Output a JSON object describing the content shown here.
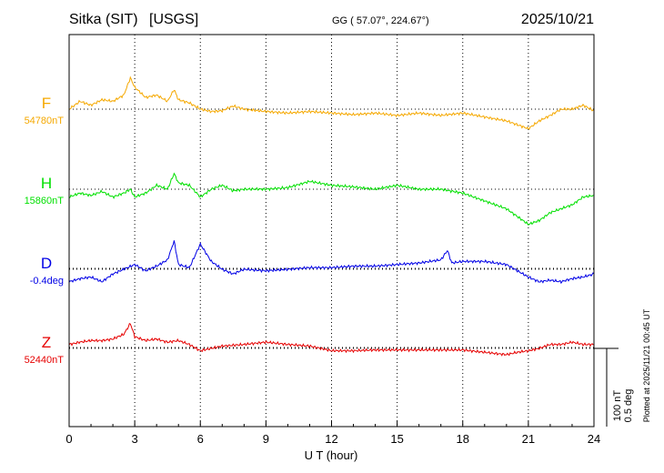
{
  "header": {
    "station": "Sitka (SIT)",
    "network": "[USGS]",
    "coords": "GG ( 57.07°, 224.67°)",
    "date": "2025/10/21"
  },
  "plotted_note": "Plotted at 2025/11/21 00:45 UT",
  "scale_bar": {
    "line1": "100 nT",
    "line2": "0.5 deg"
  },
  "chart_data": {
    "type": "line",
    "title": "Sitka (SIT)  [USGS]",
    "xlabel": "U T (hour)",
    "xlim": [
      0,
      24
    ],
    "xticks": [
      0,
      3,
      6,
      9,
      12,
      15,
      18,
      21,
      24
    ],
    "grid": true,
    "series": [
      {
        "name": "F",
        "baseline_label": "54780nT",
        "color": "#f5a800",
        "x": [
          0,
          0.5,
          1,
          1.5,
          2,
          2.5,
          2.8,
          3,
          3.5,
          4,
          4.5,
          4.8,
          5,
          5.5,
          6,
          6.5,
          7,
          7.5,
          8,
          9,
          10,
          11,
          12,
          13,
          14,
          15,
          16,
          17,
          18,
          19,
          20,
          20.5,
          21,
          21.5,
          22,
          22.5,
          23,
          23.5,
          24
        ],
        "y": [
          0,
          10,
          5,
          12,
          10,
          18,
          40,
          28,
          15,
          18,
          10,
          25,
          12,
          8,
          0,
          -3,
          -2,
          4,
          0,
          -3,
          -5,
          -3,
          -5,
          -7,
          -5,
          -8,
          -5,
          -8,
          -5,
          -10,
          -15,
          -20,
          -25,
          -15,
          -8,
          0,
          0,
          5,
          -2
        ]
      },
      {
        "name": "H",
        "baseline_label": "15860nT",
        "color": "#00e000",
        "x": [
          0,
          0.5,
          1,
          1.5,
          2,
          2.5,
          2.8,
          3,
          3.5,
          4,
          4.5,
          4.8,
          5,
          5.5,
          6,
          6.5,
          7,
          7.5,
          8,
          9,
          10,
          11,
          12,
          13,
          14,
          15,
          16,
          17,
          18,
          19,
          20,
          20.5,
          21,
          21.5,
          22,
          22.5,
          23,
          23.5,
          24
        ],
        "y": [
          -10,
          -5,
          -8,
          -3,
          -10,
          -5,
          0,
          -10,
          -5,
          5,
          0,
          20,
          8,
          5,
          -10,
          0,
          5,
          -2,
          0,
          0,
          2,
          10,
          5,
          3,
          0,
          5,
          0,
          0,
          -5,
          -15,
          -25,
          -35,
          -45,
          -40,
          -30,
          -25,
          -20,
          -10,
          -8
        ]
      },
      {
        "name": "D",
        "baseline_label": "-0.4deg",
        "color": "#0000e6",
        "x": [
          0,
          0.5,
          1,
          1.5,
          2,
          2.5,
          3,
          3.5,
          4,
          4.5,
          4.8,
          5,
          5.5,
          6,
          6.5,
          7,
          7.5,
          8,
          9,
          10,
          11,
          12,
          13,
          14,
          15,
          16,
          17,
          17.3,
          17.5,
          18,
          19,
          20,
          20.5,
          21,
          21.5,
          22,
          22.5,
          23,
          23.5,
          24
        ],
        "y": [
          -0.08,
          -0.06,
          -0.05,
          -0.08,
          -0.03,
          0,
          0.03,
          -0.01,
          0.02,
          0.06,
          0.18,
          0.03,
          0.01,
          0.16,
          0.05,
          0,
          -0.03,
          0,
          -0.01,
          0,
          0.01,
          0.01,
          0.02,
          0.02,
          0.03,
          0.04,
          0.06,
          0.12,
          0.04,
          0.05,
          0.05,
          0.03,
          -0.01,
          -0.05,
          -0.08,
          -0.07,
          -0.08,
          -0.06,
          -0.05,
          -0.03
        ]
      },
      {
        "name": "Z",
        "baseline_label": "52440nT",
        "color": "#e60000",
        "x": [
          0,
          0.5,
          1,
          1.5,
          2,
          2.5,
          2.8,
          3,
          3.5,
          4,
          4.5,
          5,
          5.5,
          6,
          6.5,
          7,
          8,
          9,
          10,
          11,
          12,
          13,
          14,
          15,
          16,
          17,
          18,
          19,
          20,
          20.5,
          21,
          21.5,
          22,
          22.5,
          23,
          23.5,
          24
        ],
        "y": [
          5,
          8,
          10,
          10,
          12,
          18,
          32,
          15,
          10,
          12,
          8,
          10,
          5,
          -3,
          0,
          3,
          5,
          8,
          5,
          3,
          -3,
          -3,
          -2,
          -2,
          -2,
          -2,
          -2,
          -5,
          -8,
          -5,
          -3,
          0,
          5,
          5,
          8,
          5,
          5
        ]
      }
    ]
  }
}
